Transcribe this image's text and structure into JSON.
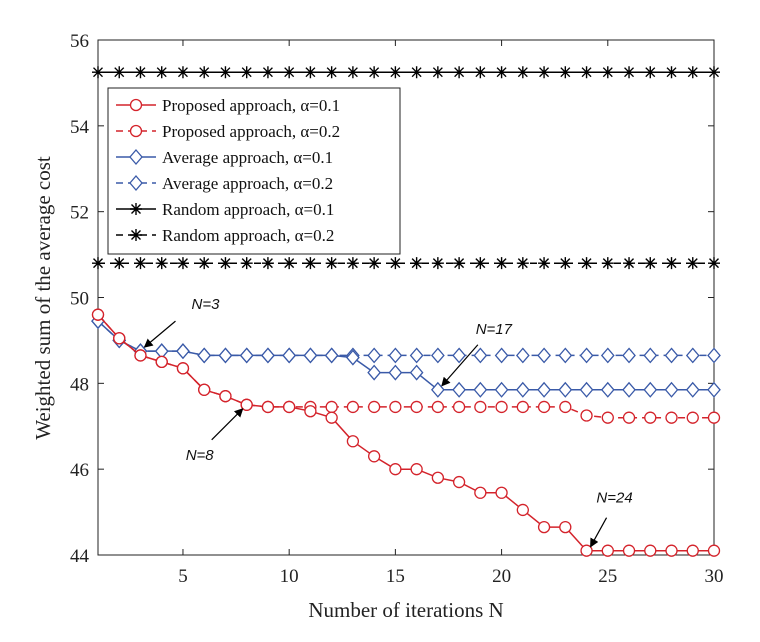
{
  "chart_data": {
    "type": "line",
    "xlabel": "Number of iterations N",
    "ylabel": "Weighted sum of the average cost",
    "xlim": [
      1,
      30
    ],
    "ylim": [
      44,
      56
    ],
    "xticks": [
      5,
      10,
      15,
      20,
      25,
      30
    ],
    "yticks": [
      44,
      46,
      48,
      50,
      52,
      54,
      56
    ],
    "grid": false,
    "legend_position": "top-left",
    "x": [
      1,
      2,
      3,
      4,
      5,
      6,
      7,
      8,
      9,
      10,
      11,
      12,
      13,
      14,
      15,
      16,
      17,
      18,
      19,
      20,
      21,
      22,
      23,
      24,
      25,
      26,
      27,
      28,
      29,
      30
    ],
    "series": [
      {
        "name": "Proposed approach, α=0.1",
        "color": "#d4232b",
        "dash": "solid",
        "marker": "circle",
        "values": [
          49.6,
          49.05,
          48.65,
          48.5,
          48.35,
          47.85,
          47.7,
          47.5,
          47.45,
          47.45,
          47.35,
          47.2,
          46.65,
          46.3,
          46.0,
          46.0,
          45.8,
          45.7,
          45.45,
          45.45,
          45.05,
          44.65,
          44.65,
          44.1,
          44.1,
          44.1,
          44.1,
          44.1,
          44.1,
          44.1
        ]
      },
      {
        "name": "Proposed approach, α=0.2",
        "color": "#d4232b",
        "dash": "dashed",
        "marker": "circle",
        "values": [
          49.6,
          49.05,
          48.65,
          48.5,
          48.35,
          47.85,
          47.7,
          47.5,
          47.45,
          47.45,
          47.45,
          47.45,
          47.45,
          47.45,
          47.45,
          47.45,
          47.45,
          47.45,
          47.45,
          47.45,
          47.45,
          47.45,
          47.45,
          47.25,
          47.2,
          47.2,
          47.2,
          47.2,
          47.2,
          47.2
        ]
      },
      {
        "name": "Average approach, α=0.1",
        "color": "#3a5aa8",
        "dash": "solid",
        "marker": "diamond",
        "values": [
          49.45,
          49.0,
          48.75,
          48.75,
          48.75,
          48.65,
          48.65,
          48.65,
          48.65,
          48.65,
          48.65,
          48.65,
          48.6,
          48.25,
          48.25,
          48.25,
          47.85,
          47.85,
          47.85,
          47.85,
          47.85,
          47.85,
          47.85,
          47.85,
          47.85,
          47.85,
          47.85,
          47.85,
          47.85,
          47.85
        ]
      },
      {
        "name": "Average approach, α=0.2",
        "color": "#3a5aa8",
        "dash": "dashed",
        "marker": "diamond",
        "values": [
          49.45,
          49.0,
          48.75,
          48.75,
          48.75,
          48.65,
          48.65,
          48.65,
          48.65,
          48.65,
          48.65,
          48.65,
          48.65,
          48.65,
          48.65,
          48.65,
          48.65,
          48.65,
          48.65,
          48.65,
          48.65,
          48.65,
          48.65,
          48.65,
          48.65,
          48.65,
          48.65,
          48.65,
          48.65,
          48.65
        ]
      },
      {
        "name": "Random approach, α=0.1",
        "color": "#000000",
        "dash": "solid",
        "marker": "star",
        "values": [
          55.25,
          55.25,
          55.25,
          55.25,
          55.25,
          55.25,
          55.25,
          55.25,
          55.25,
          55.25,
          55.25,
          55.25,
          55.25,
          55.25,
          55.25,
          55.25,
          55.25,
          55.25,
          55.25,
          55.25,
          55.25,
          55.25,
          55.25,
          55.25,
          55.25,
          55.25,
          55.25,
          55.25,
          55.25,
          55.25
        ]
      },
      {
        "name": "Random approach, α=0.2",
        "color": "#000000",
        "dash": "dashed",
        "marker": "star",
        "values": [
          50.8,
          50.8,
          50.8,
          50.8,
          50.8,
          50.8,
          50.8,
          50.8,
          50.8,
          50.8,
          50.8,
          50.8,
          50.8,
          50.8,
          50.8,
          50.8,
          50.8,
          50.8,
          50.8,
          50.8,
          50.8,
          50.8,
          50.8,
          50.8,
          50.8,
          50.8,
          50.8,
          50.8,
          50.8,
          50.8
        ]
      }
    ],
    "annotations": [
      {
        "text": "N=3",
        "x": 3,
        "y": 48.75
      },
      {
        "text": "N=8",
        "x": 8,
        "y": 47.5
      },
      {
        "text": "N=17",
        "x": 17,
        "y": 47.85
      },
      {
        "text": "N=24",
        "x": 24,
        "y": 44.1
      }
    ]
  }
}
